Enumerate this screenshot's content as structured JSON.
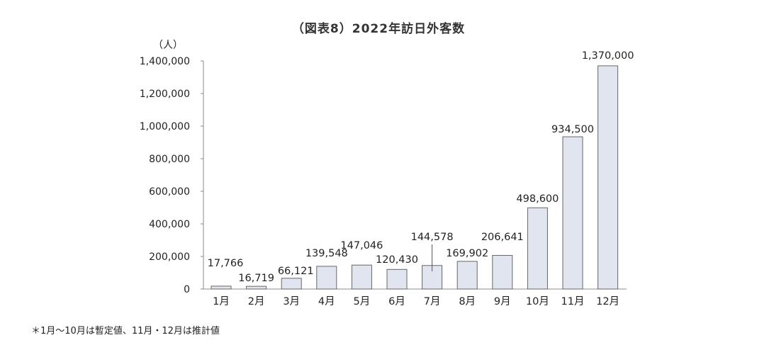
{
  "chart_data": {
    "type": "bar",
    "title": "（図表8）2022年訪日外客数",
    "ylabel": "（人）",
    "xlabel": "",
    "ylim": [
      0,
      1400000
    ],
    "yticks": [
      0,
      200000,
      400000,
      600000,
      800000,
      1000000,
      1200000,
      1400000
    ],
    "ytick_labels": [
      "0",
      "200,000",
      "400,000",
      "600,000",
      "800,000",
      "1,000,000",
      "1,200,000",
      "1,400,000"
    ],
    "categories": [
      "1月",
      "2月",
      "3月",
      "4月",
      "5月",
      "6月",
      "7月",
      "8月",
      "9月",
      "10月",
      "11月",
      "12月"
    ],
    "values": [
      17766,
      16719,
      66121,
      139548,
      147046,
      120430,
      144578,
      169902,
      206641,
      498600,
      934500,
      1370000
    ],
    "data_labels": [
      "17,766",
      "16,719",
      "66,121",
      "139,548",
      "147,046",
      "120,430",
      "144,578",
      "169,902",
      "206,641",
      "498,600",
      "934,500",
      "1,370,000"
    ],
    "bar_color": "#e1e5ef",
    "bar_edge": "#666666",
    "grid": false,
    "footnote": "＊1月〜10月は暫定値、11月・12月は推計値"
  }
}
